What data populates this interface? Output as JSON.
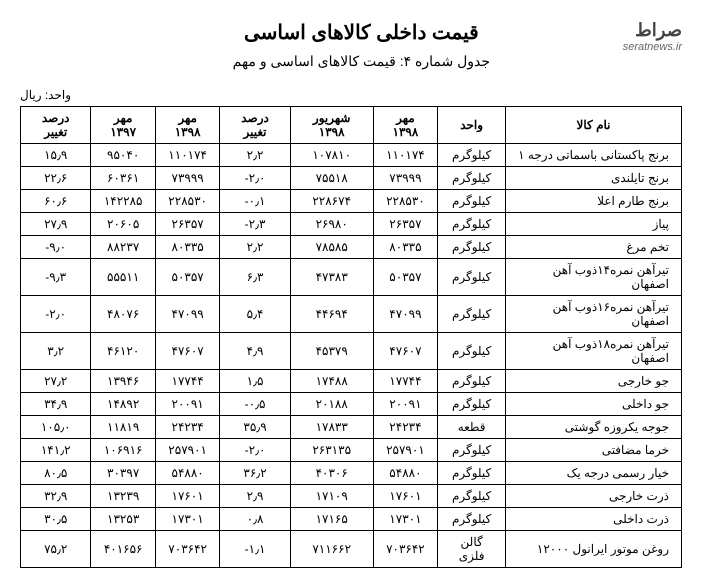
{
  "logo": {
    "persian": "صراط",
    "url": "seratnews.ir"
  },
  "title": "قیمت داخلی کالاهای اساسی",
  "subtitle": "جدول شماره ۴: قیمت کالاهای اساسی و مهم",
  "unit": "واحد: ریال",
  "table": {
    "headers": [
      "نام کالا",
      "واحد",
      "مهر ۱۳۹۸",
      "شهریور ۱۳۹۸",
      "درصد تغییر",
      "مهر ۱۳۹۸",
      "مهر ۱۳۹۷",
      "درصد تغییر"
    ],
    "rows": [
      [
        "برنج پاکستانی باسماتی درجه ۱",
        "کیلوگرم",
        "۱۱۰۱۷۴",
        "۱۰۷۸۱۰",
        "۲٫۲",
        "۱۱۰۱۷۴",
        "۹۵۰۴۰",
        "۱۵٫۹"
      ],
      [
        "برنج تایلندی",
        "کیلوگرم",
        "۷۳۹۹۹",
        "۷۵۵۱۸",
        "۲٫۰-",
        "۷۳۹۹۹",
        "۶۰۳۶۱",
        "۲۲٫۶"
      ],
      [
        "برنج طارم اعلا",
        "کیلوگرم",
        "۲۲۸۵۳۰",
        "۲۲۸۶۷۴",
        "۰٫۱-",
        "۲۲۸۵۳۰",
        "۱۴۲۲۸۵",
        "۶۰٫۶"
      ],
      [
        "پیاز",
        "کیلوگرم",
        "۲۶۳۵۷",
        "۲۶۹۸۰",
        "۲٫۳-",
        "۲۶۳۵۷",
        "۲۰۶۰۵",
        "۲۷٫۹"
      ],
      [
        "تخم مرغ",
        "کیلوگرم",
        "۸۰۳۳۵",
        "۷۸۵۸۵",
        "۲٫۲",
        "۸۰۳۳۵",
        "۸۸۲۳۷",
        "۹٫۰-"
      ],
      [
        "تیرآهن نمره۱۴ذوب آهن اصفهان",
        "کیلوگرم",
        "۵۰۳۵۷",
        "۴۷۳۸۳",
        "۶٫۳",
        "۵۰۳۵۷",
        "۵۵۵۱۱",
        "۹٫۳-"
      ],
      [
        "تیرآهن نمره۱۶ذوب آهن اصفهان",
        "کیلوگرم",
        "۴۷۰۹۹",
        "۴۴۶۹۴",
        "۵٫۴",
        "۴۷۰۹۹",
        "۴۸۰۷۶",
        "۲٫۰-"
      ],
      [
        "تیرآهن نمره۱۸ذوب آهن اصفهان",
        "کیلوگرم",
        "۴۷۶۰۷",
        "۴۵۳۷۹",
        "۴٫۹",
        "۴۷۶۰۷",
        "۴۶۱۲۰",
        "۳٫۲"
      ],
      [
        "جو خارجی",
        "کیلوگرم",
        "۱۷۷۴۴",
        "۱۷۴۸۸",
        "۱٫۵",
        "۱۷۷۴۴",
        "۱۳۹۴۶",
        "۲۷٫۲"
      ],
      [
        "جو داخلی",
        "کیلوگرم",
        "۲۰۰۹۱",
        "۲۰۱۸۸",
        "۰٫۵-",
        "۲۰۰۹۱",
        "۱۴۸۹۲",
        "۳۴٫۹"
      ],
      [
        "جوجه یکروزه گوشتی",
        "قطعه",
        "۲۴۲۳۴",
        "۱۷۸۳۳",
        "۳۵٫۹",
        "۲۴۲۳۴",
        "۱۱۸۱۹",
        "۱۰۵٫۰"
      ],
      [
        "خرما مضافتی",
        "کیلوگرم",
        "۲۵۷۹۰۱",
        "۲۶۳۱۳۵",
        "۲٫۰-",
        "۲۵۷۹۰۱",
        "۱۰۶۹۱۶",
        "۱۴۱٫۲"
      ],
      [
        "خیار رسمی درجه یک",
        "کیلوگرم",
        "۵۴۸۸۰",
        "۴۰۳۰۶",
        "۳۶٫۲",
        "۵۴۸۸۰",
        "۳۰۳۹۷",
        "۸۰٫۵"
      ],
      [
        "ذرت خارجی",
        "کیلوگرم",
        "۱۷۶۰۱",
        "۱۷۱۰۹",
        "۲٫۹",
        "۱۷۶۰۱",
        "۱۳۲۳۹",
        "۳۲٫۹"
      ],
      [
        "ذرت داخلی",
        "کیلوگرم",
        "۱۷۳۰۱",
        "۱۷۱۶۵",
        "۰٫۸",
        "۱۷۳۰۱",
        "۱۳۲۵۳",
        "۳۰٫۵"
      ],
      [
        "روغن موتور ایرانول ۱۲۰۰۰",
        "گالن فلزی",
        "۷۰۳۶۴۲",
        "۷۱۱۶۶۲",
        "۱٫۱-",
        "۷۰۳۶۴۲",
        "۴۰۱۶۵۶",
        "۷۵٫۲"
      ]
    ],
    "header_bg": "#ffffff",
    "border_color": "#000000",
    "font_size": 12
  }
}
